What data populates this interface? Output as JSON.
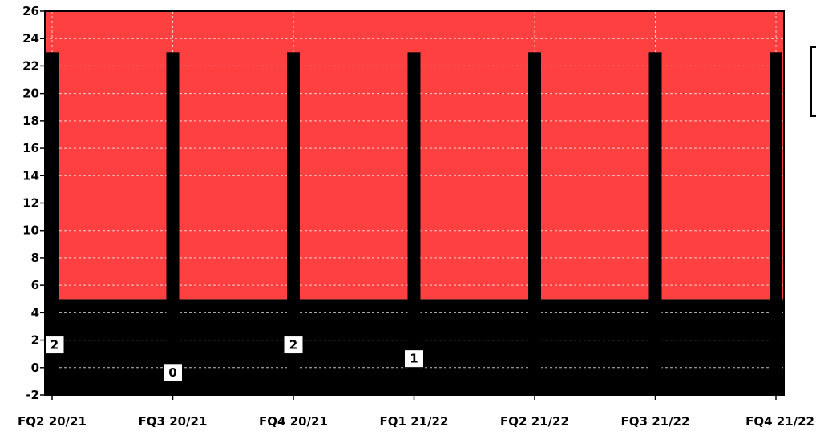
{
  "chart_data": {
    "type": "bar",
    "categories": [
      "FQ2 20/21",
      "FQ3 20/21",
      "FQ4 20/21",
      "FQ1 21/22",
      "FQ2 21/22",
      "FQ3 21/22",
      "FQ4 21/22"
    ],
    "ylim": [
      -2,
      26
    ],
    "yticks": [
      -2,
      0,
      2,
      4,
      6,
      8,
      10,
      12,
      14,
      16,
      18,
      20,
      22,
      24,
      26
    ],
    "grid": true,
    "bands": [
      {
        "from": -2,
        "to": 5,
        "color": "#000000"
      },
      {
        "from": 5,
        "to": 26,
        "color": "#ff4040"
      }
    ],
    "series": [
      {
        "values": [
          23,
          23,
          23,
          23,
          23,
          23,
          23
        ],
        "color": "#000000"
      }
    ],
    "data_labels": [
      {
        "category": "FQ2 20/21",
        "text": "2",
        "value": 2
      },
      {
        "category": "FQ3 20/21",
        "text": "0",
        "value": 0
      },
      {
        "category": "FQ4 20/21",
        "text": "2",
        "value": 2
      },
      {
        "category": "FQ1 21/22",
        "text": "1",
        "value": 1
      }
    ],
    "colors": {
      "plot_border": "#000000",
      "grid": "#ffffff",
      "background": "#ffffff"
    }
  }
}
